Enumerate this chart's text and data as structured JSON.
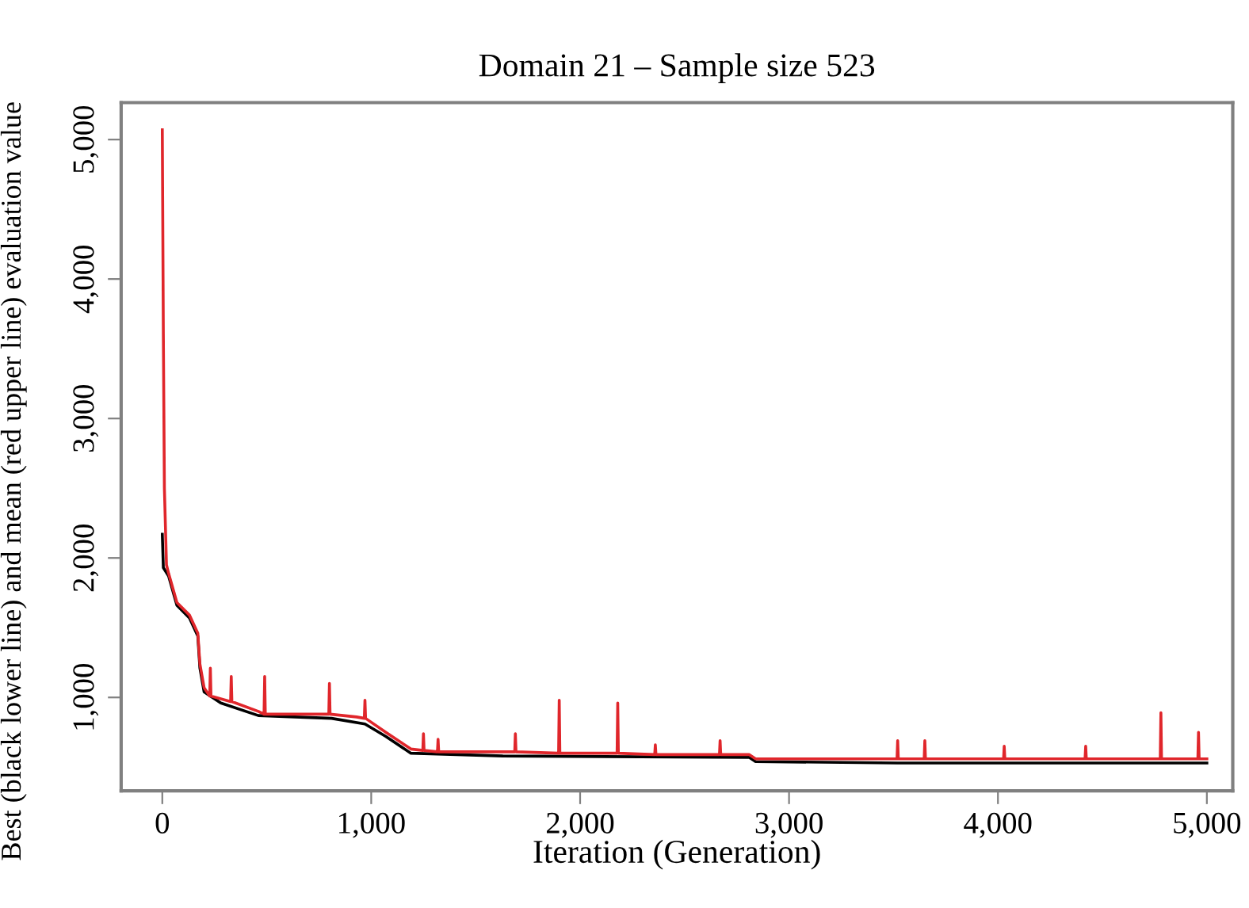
{
  "chart_data": {
    "type": "line",
    "title": "Domain 21 – Sample size 523",
    "xlabel": "Iteration (Generation)",
    "ylabel": "Best (black lower line) and mean (red upper line) evaluation value",
    "series": [
      {
        "color": "#000000",
        "x": [
          0,
          5,
          30,
          70,
          130,
          170,
          180,
          200,
          280,
          460,
          810,
          970,
          1070,
          1190,
          1630,
          2810,
          2840,
          3520,
          5000
        ],
        "values": [
          2170,
          1930,
          1870,
          1660,
          1570,
          1440,
          1210,
          1040,
          960,
          870,
          850,
          810,
          720,
          600,
          580,
          570,
          540,
          530,
          530
        ]
      },
      {
        "color": "#e0262b",
        "x": [
          0,
          5,
          10,
          20,
          30,
          70,
          130,
          170,
          180,
          200,
          227,
          230,
          233,
          280,
          327,
          330,
          333,
          460,
          487,
          490,
          493,
          700,
          797,
          800,
          803,
          930,
          967,
          970,
          973,
          1070,
          1190,
          1247,
          1250,
          1253,
          1317,
          1320,
          1323,
          1630,
          1687,
          1690,
          1693,
          1897,
          1900,
          1903,
          2177,
          2180,
          2183,
          2357,
          2360,
          2363,
          2667,
          2670,
          2673,
          2810,
          2840,
          3517,
          3520,
          3523,
          3647,
          3650,
          3653,
          4027,
          4030,
          4033,
          4417,
          4420,
          4423,
          4777,
          4780,
          4783,
          4957,
          4960,
          4963,
          5000
        ],
        "values": [
          5070,
          3600,
          2500,
          1950,
          1890,
          1680,
          1590,
          1460,
          1240,
          1070,
          1010,
          1210,
          1010,
          990,
          970,
          1150,
          970,
          900,
          880,
          1150,
          880,
          880,
          880,
          1100,
          880,
          860,
          850,
          980,
          850,
          750,
          630,
          620,
          740,
          620,
          610,
          700,
          610,
          610,
          610,
          740,
          610,
          600,
          980,
          600,
          600,
          960,
          600,
          590,
          660,
          590,
          590,
          690,
          590,
          590,
          560,
          560,
          690,
          560,
          560,
          690,
          560,
          560,
          650,
          560,
          560,
          650,
          560,
          560,
          890,
          560,
          560,
          750,
          560,
          560
        ]
      }
    ],
    "xlim": [
      -197,
      5124
    ],
    "ylim": [
      330,
      5265
    ],
    "xticks": [
      0,
      {
        "value": 1000,
        "label": "1,000"
      },
      {
        "value": 2000,
        "label": "2,000"
      },
      {
        "value": 3000,
        "label": "3,000"
      },
      {
        "value": 4000,
        "label": "4,000"
      },
      {
        "value": 5000,
        "label": "5,000"
      }
    ],
    "yticks": [
      {
        "value": 1000,
        "label": "1,000"
      },
      {
        "value": 2000,
        "label": "2,000"
      },
      {
        "value": 3000,
        "label": "3,000"
      },
      {
        "value": 4000,
        "label": "4,000"
      },
      {
        "value": 5000,
        "label": "5,000"
      }
    ],
    "grid": false,
    "legend": false
  }
}
